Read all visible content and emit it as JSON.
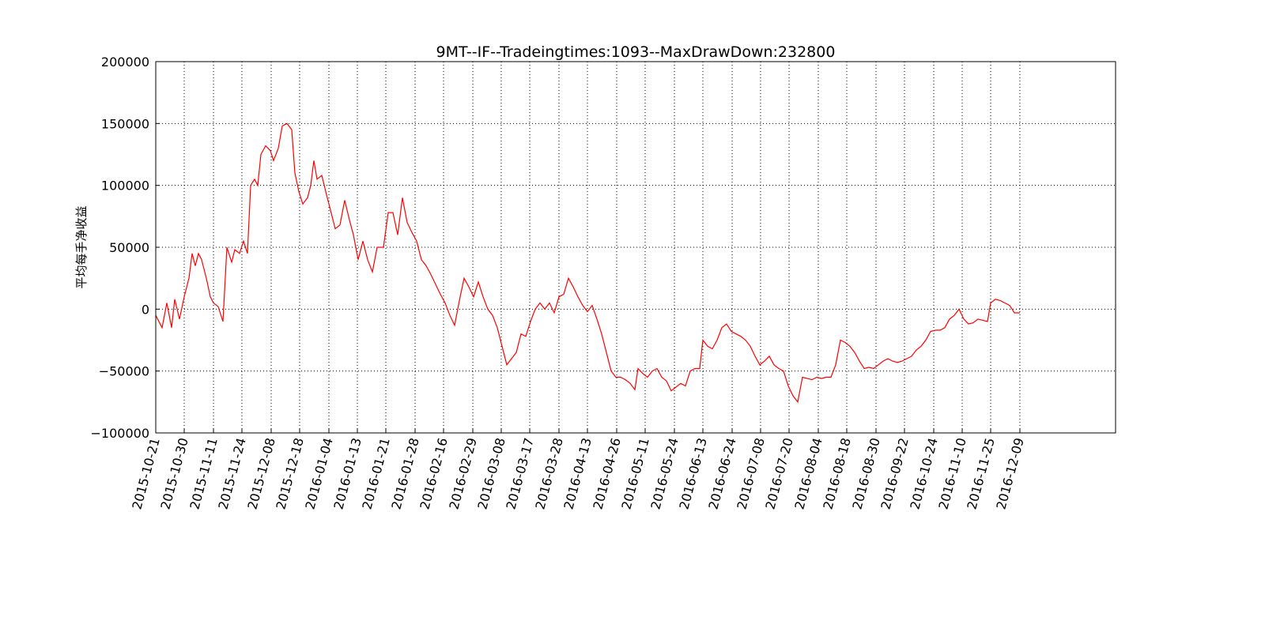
{
  "chart_data": {
    "type": "line",
    "title": "9MT--IF--Tradeingtimes:1093--MaxDrawDown:232800",
    "y_label": "平均每手净收益",
    "grid": true,
    "xlim": [
      0,
      1214
    ],
    "ylim": [
      -100000,
      200000
    ],
    "yticks": [
      {
        "value": -100000,
        "label": "−100000"
      },
      {
        "value": -50000,
        "label": "−50000"
      },
      0,
      50000,
      100000,
      150000,
      200000
    ],
    "xticks": [
      {
        "value": 0,
        "label": "2015-10-21"
      },
      {
        "value": 36,
        "label": "2015-10-30"
      },
      {
        "value": 73,
        "label": "2015-11-11"
      },
      {
        "value": 109,
        "label": "2015-11-24"
      },
      {
        "value": 146,
        "label": "2015-12-08"
      },
      {
        "value": 182,
        "label": "2015-12-18"
      },
      {
        "value": 219,
        "label": "2016-01-04"
      },
      {
        "value": 255,
        "label": "2016-01-13"
      },
      {
        "value": 291,
        "label": "2016-01-21"
      },
      {
        "value": 328,
        "label": "2016-01-28"
      },
      {
        "value": 364,
        "label": "2016-02-16"
      },
      {
        "value": 401,
        "label": "2016-02-29"
      },
      {
        "value": 437,
        "label": "2016-03-08"
      },
      {
        "value": 473,
        "label": "2016-03-17"
      },
      {
        "value": 510,
        "label": "2016-03-28"
      },
      {
        "value": 546,
        "label": "2016-04-13"
      },
      {
        "value": 583,
        "label": "2016-04-26"
      },
      {
        "value": 619,
        "label": "2016-05-11"
      },
      {
        "value": 656,
        "label": "2016-05-24"
      },
      {
        "value": 692,
        "label": "2016-06-13"
      },
      {
        "value": 729,
        "label": "2016-06-24"
      },
      {
        "value": 765,
        "label": "2016-07-08"
      },
      {
        "value": 801,
        "label": "2016-07-20"
      },
      {
        "value": 838,
        "label": "2016-08-04"
      },
      {
        "value": 874,
        "label": "2016-08-18"
      },
      {
        "value": 911,
        "label": "2016-08-30"
      },
      {
        "value": 947,
        "label": "2016-09-22"
      },
      {
        "value": 984,
        "label": "2016-10-24"
      },
      {
        "value": 1020,
        "label": "2016-11-10"
      },
      {
        "value": 1056,
        "label": "2016-11-25"
      },
      {
        "value": 1093,
        "label": "2016-12-09"
      }
    ],
    "color": "#ff0000",
    "x": [
      0,
      8,
      14,
      20,
      24,
      30,
      36,
      42,
      46,
      50,
      54,
      58,
      64,
      69,
      73,
      79,
      85,
      90,
      96,
      100,
      106,
      111,
      116,
      120,
      125,
      129,
      133,
      139,
      145,
      149,
      155,
      160,
      166,
      172,
      176,
      181,
      186,
      192,
      196,
      200,
      204,
      210,
      215,
      221,
      227,
      233,
      239,
      245,
      250,
      256,
      262,
      268,
      274,
      280,
      288,
      294,
      300,
      306,
      312,
      318,
      324,
      330,
      336,
      342,
      348,
      354,
      360,
      366,
      372,
      378,
      385,
      390,
      396,
      402,
      408,
      414,
      420,
      426,
      432,
      438,
      444,
      450,
      456,
      462,
      468,
      474,
      480,
      486,
      492,
      498,
      504,
      510,
      516,
      522,
      528,
      534,
      540,
      546,
      552,
      558,
      564,
      570,
      576,
      582,
      588,
      594,
      600,
      606,
      610,
      616,
      622,
      628,
      634,
      640,
      646,
      652,
      658,
      664,
      670,
      676,
      682,
      688,
      692,
      698,
      704,
      710,
      716,
      722,
      728,
      734,
      740,
      746,
      752,
      758,
      764,
      770,
      776,
      782,
      788,
      794,
      800,
      806,
      812,
      818,
      824,
      830,
      836,
      842,
      848,
      854,
      860,
      866,
      872,
      878,
      884,
      890,
      896,
      902,
      908,
      914,
      920,
      926,
      932,
      938,
      944,
      950,
      956,
      962,
      968,
      974,
      980,
      986,
      992,
      998,
      1004,
      1010,
      1016,
      1022,
      1028,
      1034,
      1040,
      1046,
      1052,
      1056,
      1062,
      1068,
      1074,
      1080,
      1086,
      1093
    ],
    "values": [
      -5000,
      -15000,
      5000,
      -15000,
      8000,
      -8000,
      10000,
      25000,
      45000,
      35000,
      45000,
      40000,
      25000,
      10000,
      5000,
      2000,
      -10000,
      50000,
      38000,
      48000,
      45000,
      55000,
      45000,
      100000,
      105000,
      100000,
      125000,
      132000,
      128000,
      120000,
      130000,
      148000,
      150000,
      145000,
      110000,
      95000,
      85000,
      90000,
      100000,
      120000,
      105000,
      108000,
      95000,
      80000,
      65000,
      68000,
      88000,
      72000,
      60000,
      40000,
      55000,
      40000,
      30000,
      50000,
      50000,
      78000,
      78000,
      60000,
      90000,
      70000,
      62000,
      55000,
      40000,
      35000,
      28000,
      20000,
      12000,
      5000,
      -5000,
      -13000,
      10000,
      25000,
      18000,
      10000,
      22000,
      10000,
      0,
      -5000,
      -15000,
      -30000,
      -45000,
      -40000,
      -35000,
      -20000,
      -22000,
      -10000,
      0,
      5000,
      0,
      5000,
      -3000,
      10000,
      12000,
      25000,
      18000,
      10000,
      3000,
      -2000,
      3000,
      -8000,
      -20000,
      -35000,
      -50000,
      -55000,
      -55000,
      -57000,
      -60000,
      -65000,
      -48000,
      -52000,
      -55000,
      -50000,
      -48000,
      -55000,
      -58000,
      -66000,
      -63000,
      -60000,
      -62000,
      -50000,
      -48000,
      -48000,
      -25000,
      -30000,
      -32000,
      -25000,
      -15000,
      -12000,
      -18000,
      -20000,
      -22000,
      -25000,
      -30000,
      -38000,
      -45000,
      -42000,
      -38000,
      -45000,
      -48000,
      -50000,
      -62000,
      -70000,
      -75000,
      -55000,
      -56000,
      -57000,
      -55000,
      -56000,
      -55000,
      -55000,
      -45000,
      -25000,
      -27000,
      -30000,
      -35000,
      -42000,
      -48000,
      -47000,
      -48000,
      -45000,
      -42000,
      -40000,
      -42000,
      -43000,
      -42000,
      -40000,
      -38000,
      -33000,
      -30000,
      -25000,
      -18000,
      -17000,
      -17000,
      -15000,
      -8000,
      -5000,
      0,
      -8000,
      -12000,
      -11000,
      -8000,
      -9000,
      -10000,
      5000,
      8000,
      7000,
      5000,
      3000,
      -3000,
      -3000
    ]
  }
}
